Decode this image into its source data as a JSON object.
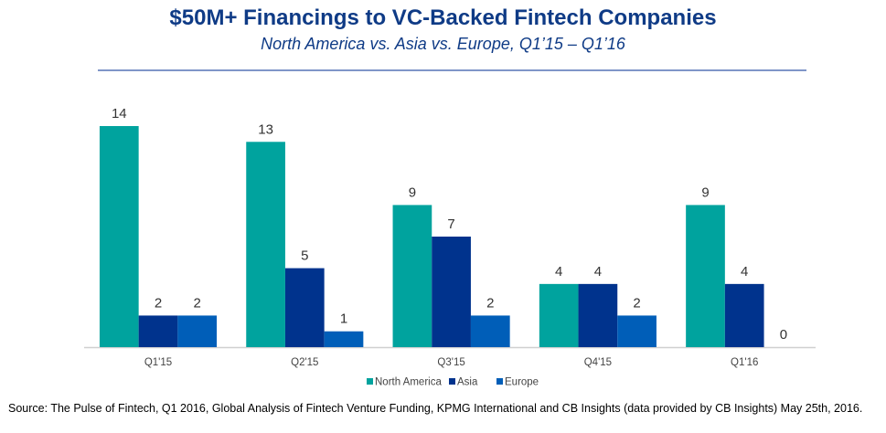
{
  "chart_data": {
    "type": "bar",
    "title": "$50M+ Financings to VC-Backed Fintech Companies",
    "subtitle": "North America vs. Asia vs. Europe, Q1’15 – Q1’16",
    "categories": [
      "Q1'15",
      "Q2'15",
      "Q3'15",
      "Q4'15",
      "Q1'16"
    ],
    "series": [
      {
        "name": "North America",
        "color": "#00A39E",
        "values": [
          14,
          13,
          9,
          4,
          9
        ]
      },
      {
        "name": "Asia",
        "color": "#00338D",
        "values": [
          2,
          5,
          7,
          4,
          4
        ]
      },
      {
        "name": "Europe",
        "color": "#005EB8",
        "values": [
          2,
          1,
          2,
          2,
          0
        ]
      }
    ],
    "ylim": [
      0,
      14
    ],
    "grid": false,
    "legend": "bottom",
    "data_labels": true
  },
  "source": "Source: The Pulse of Fintech, Q1 2016, Global Analysis of Fintech Venture Funding, KPMG International and CB Insights (data provided by CB Insights) May 25th, 2016."
}
